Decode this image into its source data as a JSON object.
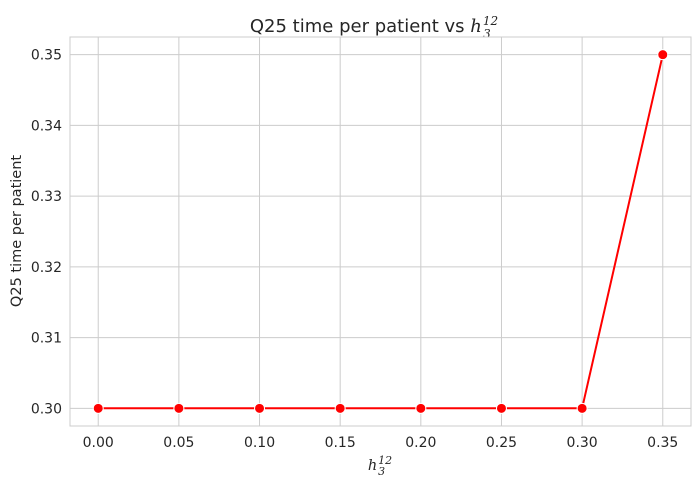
{
  "chart_data": {
    "type": "line",
    "title_prefix": "Q25 time per patient vs ",
    "math_var": "h",
    "math_sub": "3",
    "math_sup": "12",
    "xlabel_var": "h",
    "xlabel_sub": "3",
    "xlabel_sup": "12",
    "ylabel": "Q25 time per patient",
    "x": [
      0.0,
      0.05,
      0.1,
      0.15,
      0.2,
      0.25,
      0.3,
      0.35
    ],
    "x_tick_labels": [
      "0.00",
      "0.05",
      "0.10",
      "0.15",
      "0.20",
      "0.25",
      "0.30",
      "0.35"
    ],
    "series": [
      {
        "values": [
          0.3,
          0.3,
          0.3,
          0.3,
          0.3,
          0.3,
          0.3,
          0.35
        ],
        "color": "#ff0000"
      }
    ],
    "y_ticks": [
      0.3,
      0.31,
      0.32,
      0.33,
      0.34,
      0.35
    ],
    "y_tick_labels": [
      "0.30",
      "0.31",
      "0.32",
      "0.33",
      "0.34",
      "0.35"
    ],
    "xlim": [
      -0.0175,
      0.3675
    ],
    "ylim": [
      0.2975,
      0.3525
    ],
    "grid": true,
    "marker": "circle"
  }
}
